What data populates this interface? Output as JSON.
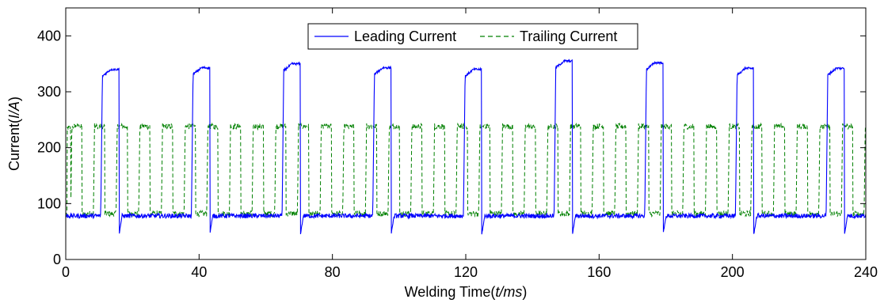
{
  "chart_data": {
    "type": "line",
    "title": "",
    "xlabel_prefix": "Welding Time(",
    "xlabel_italic": "t/ms",
    "xlabel_suffix": ")",
    "ylabel_prefix": "Current(",
    "ylabel_italic": "I/A",
    "ylabel_suffix": ")",
    "xlim": [
      0,
      240
    ],
    "ylim": [
      0,
      450
    ],
    "xticks": [
      0,
      40,
      80,
      120,
      160,
      200,
      240
    ],
    "yticks": [
      0,
      100,
      200,
      300,
      400
    ],
    "xtick_labels": [
      "0",
      "40",
      "80",
      "120",
      "160",
      "200",
      "240"
    ],
    "ytick_labels": [
      "0",
      "100",
      "200",
      "300",
      "400"
    ],
    "grid": false,
    "legend_position": "top-center",
    "series": [
      {
        "name": "Leading Current",
        "color": "#0000ff",
        "style": "solid",
        "period_ms": 27.2,
        "pulse_starts_ms": [
          10.5,
          37.7,
          64.9,
          92.1,
          119.3,
          146.5,
          173.7,
          200.9,
          228.1
        ],
        "pulse_width_ms": 5.5,
        "base_current": 78,
        "peak_currents": [
          340,
          343,
          350,
          343,
          340,
          355,
          352,
          342,
          342
        ],
        "dip_current": 45
      },
      {
        "name": "Trailing Current",
        "color": "#008000",
        "style": "dashed",
        "period_ms": 6.8,
        "first_pulse_ms": 1.5,
        "pulse_width_ms": 3.4,
        "base_current": 82,
        "peak_current": 248
      }
    ]
  }
}
